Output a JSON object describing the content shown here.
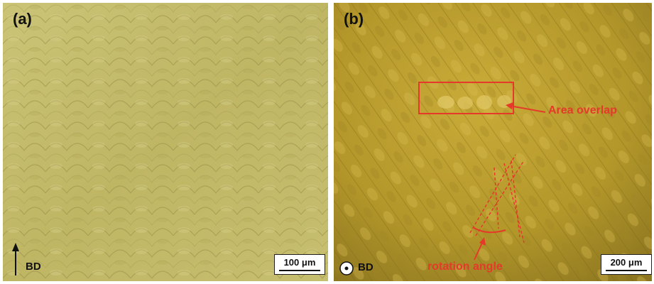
{
  "panel_a": {
    "label": "(a)",
    "direction_label": "BD",
    "scale_bar": "100 μm"
  },
  "panel_b": {
    "label": "(b)",
    "direction_label": "BD",
    "scale_bar": "200 μm",
    "annotation_overlap": "Area overlap",
    "annotation_rotation": "rotation angle"
  },
  "colors": {
    "panel_a_base": "#c4bc6a",
    "panel_b_base": "#b99d2c",
    "annotation_red": "#e53a2a"
  }
}
